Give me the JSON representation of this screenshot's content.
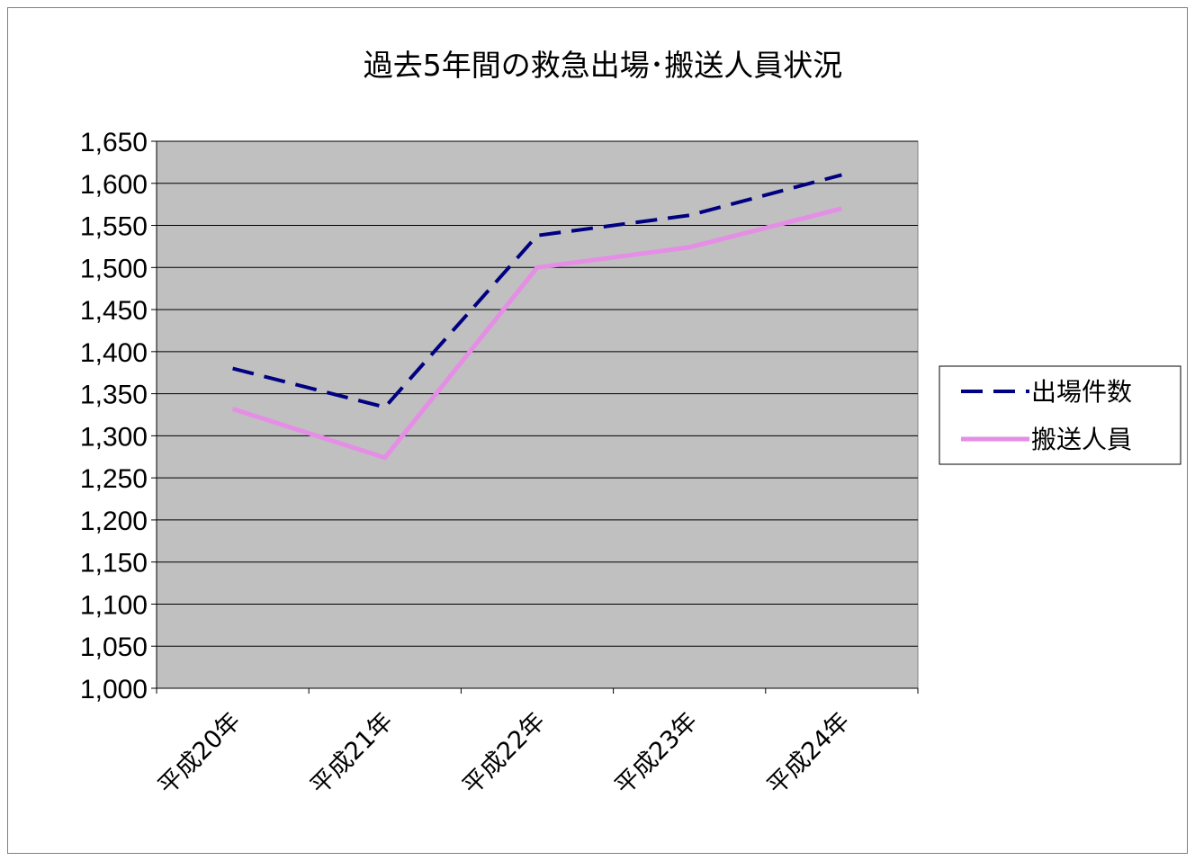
{
  "chart_data": {
    "type": "line",
    "title": "過去5年間の救急出場･搬送人員状況",
    "xlabel": "",
    "ylabel": "",
    "categories": [
      "平成20年",
      "平成21年",
      "平成22年",
      "平成23年",
      "平成24年"
    ],
    "ylim": [
      1000,
      1650
    ],
    "ytick_step": 50,
    "y_tick_labels": [
      "1,000",
      "1,050",
      "1,100",
      "1,150",
      "1,200",
      "1,250",
      "1,300",
      "1,350",
      "1,400",
      "1,450",
      "1,500",
      "1,550",
      "1,600",
      "1,650"
    ],
    "grid": true,
    "legend_position": "right",
    "series": [
      {
        "name": "出場件数",
        "values": [
          1380,
          1334,
          1538,
          1562,
          1610
        ],
        "color": "#000080",
        "style": "dashed"
      },
      {
        "name": "搬送人員",
        "values": [
          1332,
          1274,
          1500,
          1524,
          1570
        ],
        "color": "#e58ee5",
        "style": "solid"
      }
    ],
    "colors": {
      "plot_background": "#c0c0c0",
      "gridline": "#000000"
    }
  }
}
